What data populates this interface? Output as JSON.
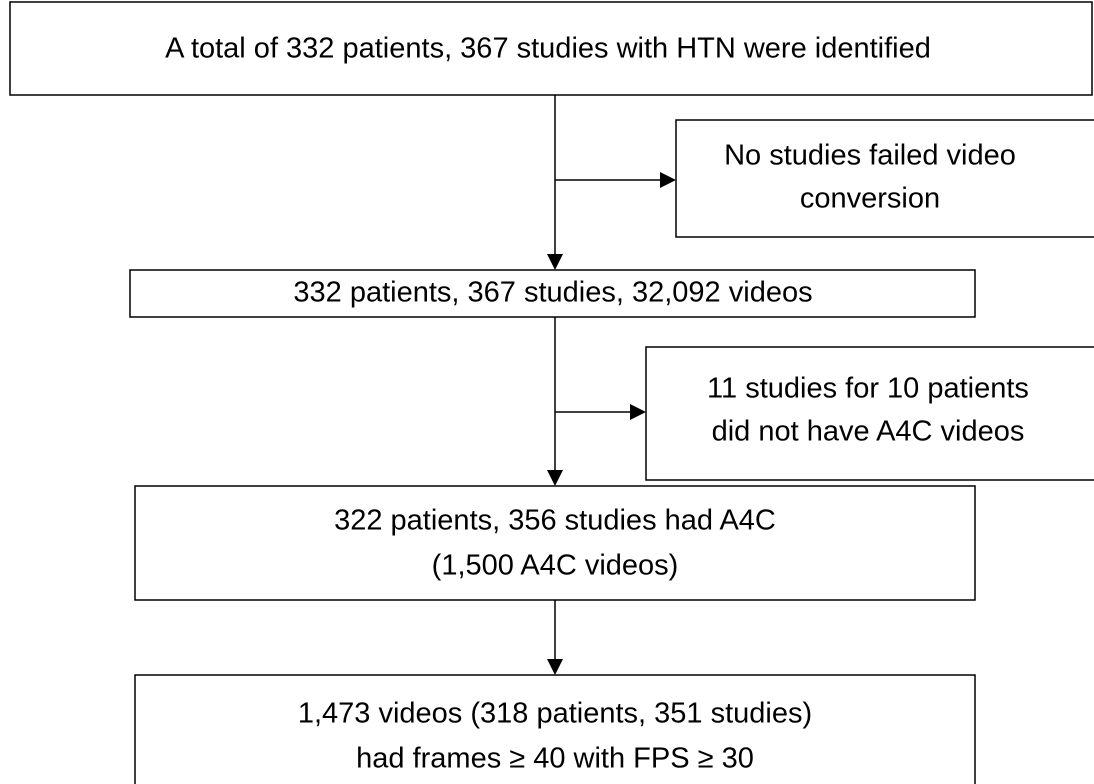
{
  "nodes": [
    {
      "lines": [
        "A total of 332 patients, 367 studies with HTN were identified"
      ]
    },
    {
      "lines": [
        "No studies failed video",
        "conversion"
      ]
    },
    {
      "lines": [
        "332 patients, 367 studies, 32,092 videos"
      ]
    },
    {
      "lines": [
        "11 studies for 10 patients",
        "did not have A4C videos"
      ]
    },
    {
      "lines": [
        "322 patients, 356 studies had A4C",
        "(1,500 A4C videos)"
      ]
    },
    {
      "lines": [
        "1,473 videos (318 patients, 351 studies)",
        "had frames ≥ 40 with FPS ≥ 30"
      ]
    }
  ]
}
